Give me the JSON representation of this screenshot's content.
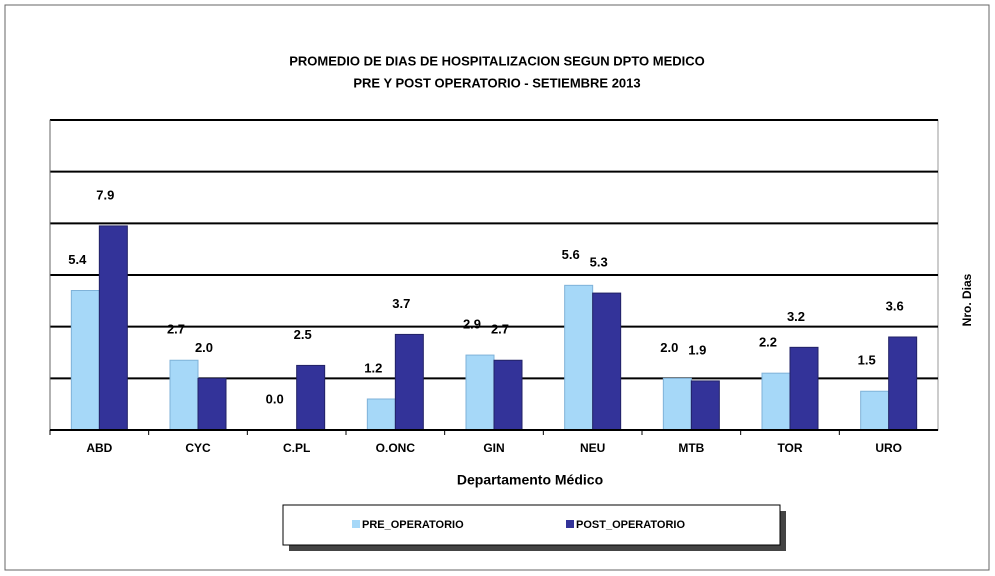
{
  "chart_data": {
    "type": "bar",
    "title": "PROMEDIO DE DIAS DE HOSPITALIZACION SEGUN DPTO MEDICO",
    "subtitle": "PRE Y POST OPERATORIO  -  SETIEMBRE 2013",
    "x_label": "Departamento Médico",
    "y_label": "Nro. Dias",
    "categories": [
      "ABD",
      "CYC",
      "C.PL",
      "O.ONC",
      "GIN",
      "NEU",
      "MTB",
      "TOR",
      "URO"
    ],
    "series": [
      {
        "name": "PRE_OPERATORIO",
        "color": "#a6d8f8",
        "values": [
          5.4,
          2.7,
          0.0,
          1.2,
          2.9,
          5.6,
          2.0,
          2.2,
          1.5
        ],
        "value_labels": [
          "5.4",
          "2.7",
          "0.0",
          "1.2",
          "2.9",
          "5.6",
          "2.0",
          "2.2",
          "1.5"
        ]
      },
      {
        "name": "POST_OPERATORIO",
        "color": "#333399",
        "values": [
          7.9,
          2.0,
          2.5,
          3.7,
          2.7,
          5.3,
          1.9,
          3.2,
          3.6
        ],
        "value_labels": [
          "7.9",
          "2.0",
          "2.5",
          "3.7",
          "2.7",
          "5.3",
          "1.9",
          "3.2",
          "3.6"
        ]
      }
    ],
    "ylim": [
      0,
      12
    ],
    "yticks": [
      0,
      2,
      4,
      6,
      8,
      10,
      12
    ],
    "grid": true,
    "legend": "bottom"
  }
}
